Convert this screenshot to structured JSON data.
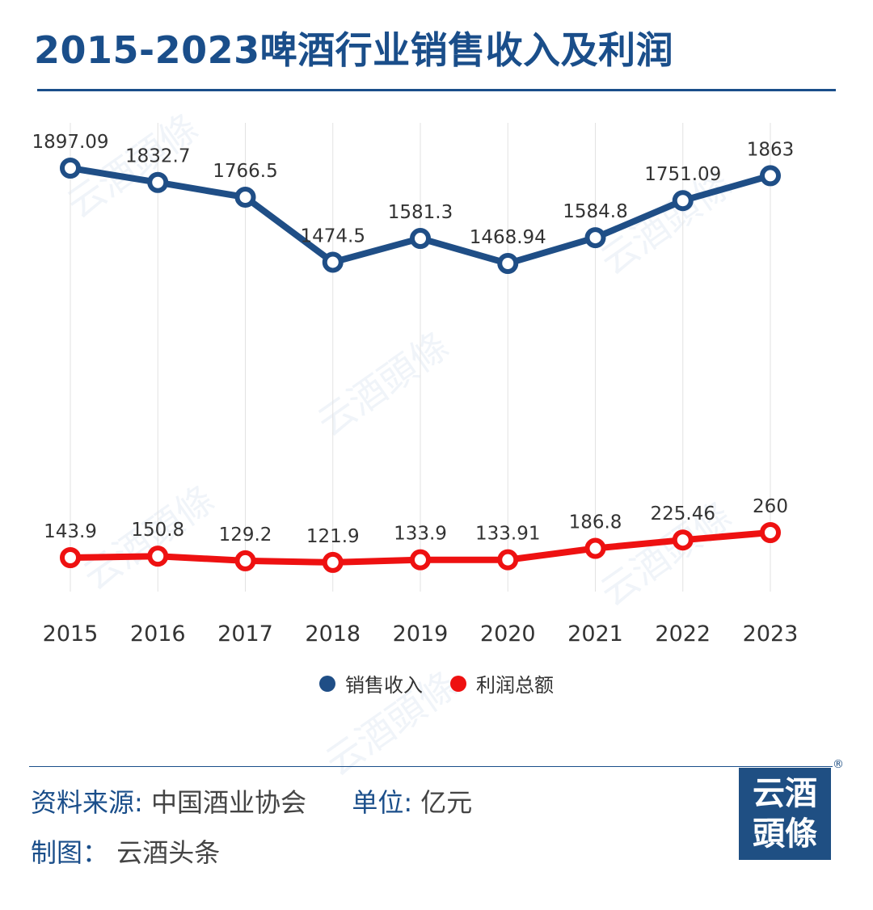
{
  "title": "2015-2023啤酒行业销售收入及利润",
  "colors": {
    "accent": "#1a4e8a",
    "revenue": "#1f4e86",
    "profit": "#ee1111",
    "grid": "#e2e2e2"
  },
  "chart_data": {
    "type": "line",
    "categories": [
      "2015",
      "2016",
      "2017",
      "2018",
      "2019",
      "2020",
      "2021",
      "2022",
      "2023"
    ],
    "series": [
      {
        "name": "销售收入",
        "values": [
          1897.09,
          1832.7,
          1766.5,
          1474.5,
          1581.3,
          1468.94,
          1584.8,
          1751.09,
          1863
        ],
        "labels": [
          "1897.09",
          "1832.7",
          "1766.5",
          "1474.5",
          "1581.3",
          "1468.94",
          "1584.8",
          "1751.09",
          "1863"
        ]
      },
      {
        "name": "利润总额",
        "values": [
          143.9,
          150.8,
          129.2,
          121.9,
          133.9,
          133.91,
          186.8,
          225.46,
          260
        ],
        "labels": [
          "143.9",
          "150.8",
          "129.2",
          "121.9",
          "133.9",
          "133.91",
          "186.8",
          "225.46",
          "260"
        ]
      }
    ],
    "grid": "vertical",
    "legend_position": "bottom-center"
  },
  "footer": {
    "source_label": "资料来源:",
    "source_value": "中国酒业协会",
    "unit_label": "单位:",
    "unit_value": "亿元",
    "credit_label": "制图：",
    "credit_value": "云酒头条"
  },
  "logo": {
    "line1": "云酒",
    "line2": "頭條",
    "mark": "®"
  },
  "watermark": "云酒頭條"
}
